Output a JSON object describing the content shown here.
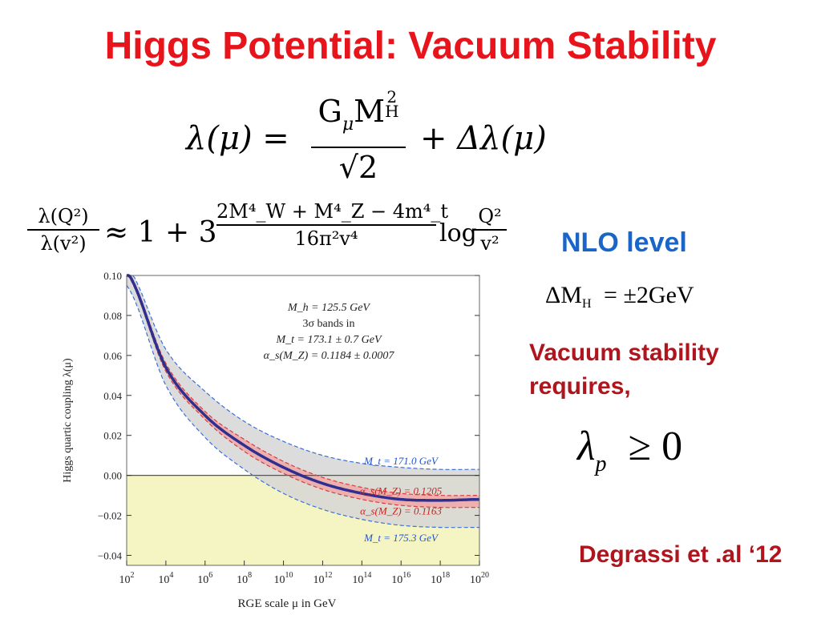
{
  "slide": {
    "title": "Higgs Potential: Vacuum Stability",
    "nlo_label": "NLO level",
    "delta_mh": "ΔM",
    "delta_mh_sub": "H",
    "delta_mh_value": "= ±2GeV",
    "vacuum_text": "Vacuum stability requires,",
    "lambda_p": "λ",
    "lambda_p_sub": "p",
    "lambda_p_rel": "≥ 0",
    "citation": "Degrassi et .al ‘12"
  },
  "equations": {
    "lambda_lhs": "λ(μ) =",
    "lambda_num_g": "G",
    "lambda_num_mu": "μ",
    "lambda_num_m": "M",
    "lambda_num_sup": "2",
    "lambda_num_sub": "H",
    "lambda_den": "√2",
    "lambda_rhs": "+ Δλ(μ)",
    "rge_lhs_num": "λ(Q²)",
    "rge_lhs_den": "λ(v²)",
    "rge_approx": "≈ 1 + 3",
    "rge_num": "2M⁴_W + M⁴_Z − 4m⁴_t",
    "rge_den": "16π²v⁴",
    "rge_log": "log",
    "rge_log_num": "Q²",
    "rge_log_den": "v²"
  },
  "chart_data": {
    "type": "line",
    "xlabel": "RGE scale μ in GeV",
    "ylabel": "Higgs quartic coupling λ(μ)",
    "x_scale": "log",
    "xlim": [
      100,
      1e+20
    ],
    "ylim": [
      -0.045,
      0.1
    ],
    "x_tick_exponents": [
      2,
      4,
      6,
      8,
      10,
      12,
      14,
      16,
      18,
      20
    ],
    "y_ticks": [
      "0.10",
      "0.08",
      "0.06",
      "0.04",
      "0.02",
      "0.00",
      "−0.02",
      "−0.04"
    ],
    "y_tick_values": [
      0.1,
      0.08,
      0.06,
      0.04,
      0.02,
      0.0,
      -0.02,
      -0.04
    ],
    "info_lines": [
      "M_h = 125.5 GeV",
      "3σ bands in",
      "M_t = 173.1 ± 0.7 GeV",
      "α_s(M_Z) = 0.1184 ± 0.0007"
    ],
    "x_log10": [
      2,
      4,
      6,
      8,
      10,
      12,
      14,
      16,
      18,
      20
    ],
    "series": [
      {
        "name": "central",
        "values": [
          0.102,
          0.054,
          0.03,
          0.015,
          0.004,
          -0.004,
          -0.009,
          -0.012,
          -0.0125,
          -0.012
        ],
        "color": "#2f2f8f"
      },
      {
        "name": "M_t = 171.0 GeV",
        "values": [
          0.105,
          0.063,
          0.042,
          0.027,
          0.017,
          0.01,
          0.006,
          0.004,
          0.003,
          0.003
        ],
        "color": "#3b6fd8"
      },
      {
        "name": "M_t = 175.3 GeV",
        "values": [
          0.095,
          0.045,
          0.019,
          0.003,
          -0.009,
          -0.017,
          -0.022,
          -0.025,
          -0.026,
          -0.026
        ],
        "color": "#3b6fd8"
      },
      {
        "name": "α_s(M_Z) = 0.1205",
        "values": [
          0.103,
          0.056,
          0.032,
          0.018,
          0.007,
          -0.001,
          -0.006,
          -0.009,
          -0.01,
          -0.01
        ],
        "color": "#d04040"
      },
      {
        "name": "α_s(M_Z) = 0.1163",
        "values": [
          0.101,
          0.052,
          0.028,
          0.012,
          0.001,
          -0.007,
          -0.012,
          -0.015,
          -0.016,
          -0.016
        ],
        "color": "#d04040"
      }
    ],
    "band_labels": [
      {
        "text": "M_t = 171.0 GeV",
        "color": "#2255cc"
      },
      {
        "text": "α_s(M_Z) = 0.1205",
        "color": "#cc2222"
      },
      {
        "text": "α_s(M_Z) = 0.1163",
        "color": "#cc2222"
      },
      {
        "text": "M_t = 175.3 GeV",
        "color": "#2255cc"
      }
    ],
    "colors": {
      "gray_band": "#d6d6d6",
      "red_band": "#f0a8a8",
      "unstable_region": "#f5f5c4"
    }
  }
}
